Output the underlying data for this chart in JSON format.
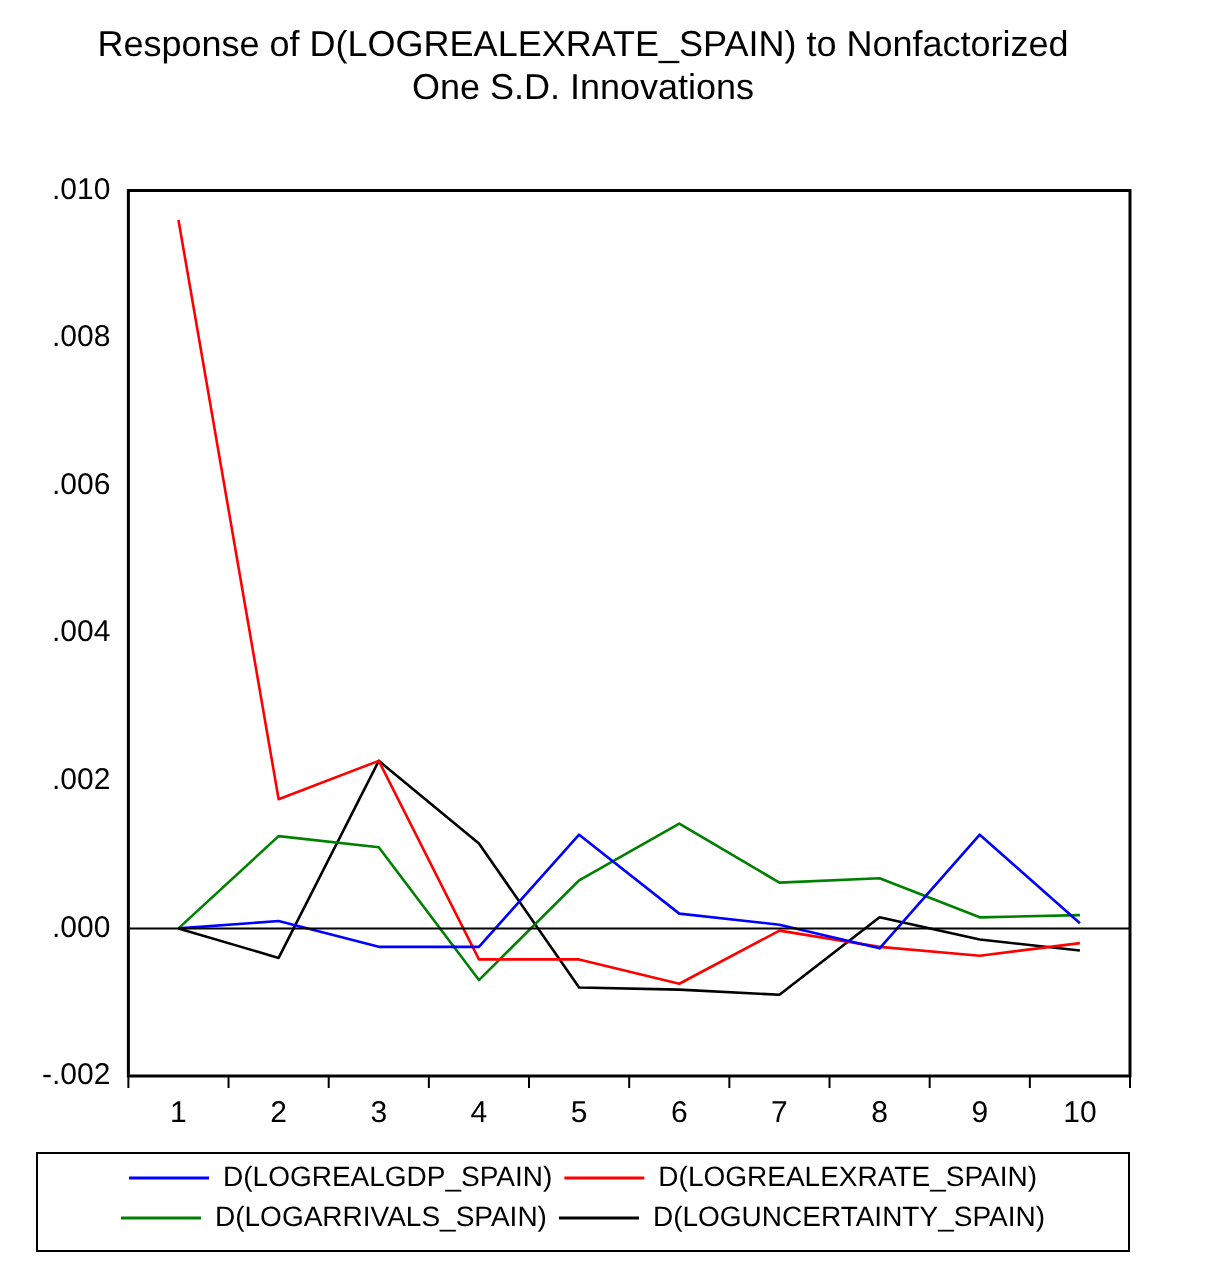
{
  "chart_data": {
    "type": "line",
    "title": [
      "Response of D(LOGREALEXRATE_SPAIN) to Nonfactorized",
      "One S.D. Innovations"
    ],
    "categories": [
      "1",
      "2",
      "3",
      "4",
      "5",
      "6",
      "7",
      "8",
      "9",
      "10"
    ],
    "series": [
      {
        "name": "D(LOGREALGDP_SPAIN)",
        "color": "#0000ff",
        "values": [
          0,
          0.0001,
          -0.00025,
          -0.00025,
          0.00127,
          0.0002,
          5e-05,
          -0.00027,
          0.00127,
          7e-05
        ]
      },
      {
        "name": "D(LOGREALEXRATE_SPAIN)",
        "color": "#ff0000",
        "values": [
          0.0096,
          0.00175,
          0.00227,
          -0.00042,
          -0.00042,
          -0.00075,
          -3e-05,
          -0.00025,
          -0.00037,
          -0.0002
        ]
      },
      {
        "name": "D(LOGARRIVALS_SPAIN)",
        "color": "#008000",
        "values": [
          0,
          0.00125,
          0.0011,
          -0.0007,
          0.00065,
          0.00142,
          0.00062,
          0.00068,
          0.00015,
          0.00018
        ]
      },
      {
        "name": "D(LOGUNCERTAINTY_SPAIN)",
        "color": "#000000",
        "values": [
          0,
          -0.0004,
          0.00227,
          0.00115,
          -0.0008,
          -0.00083,
          -0.0009,
          0.00015,
          -0.00015,
          -0.0003
        ]
      }
    ],
    "ylim": [
      -0.002,
      0.01
    ],
    "yticks": [
      {
        "value": -0.002,
        "label": "-.002"
      },
      {
        "value": 0,
        "label": ".000"
      },
      {
        "value": 0.002,
        "label": ".002"
      },
      {
        "value": 0.004,
        "label": ".004"
      },
      {
        "value": 0.006,
        "label": ".006"
      },
      {
        "value": 0.008,
        "label": ".008"
      },
      {
        "value": 0.01,
        "label": ".010"
      }
    ],
    "ref_lines": [
      {
        "axis": "y",
        "value": 0,
        "color": "#000000"
      }
    ],
    "grid": false,
    "legend": "bottom",
    "marker": "none",
    "line_style": "solid"
  }
}
